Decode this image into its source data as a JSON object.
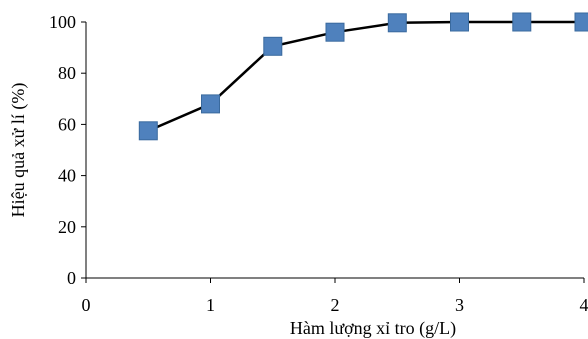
{
  "chart_data": {
    "type": "line",
    "title": "",
    "xlabel": "Hàm lượng xỉ tro (g/L)",
    "ylabel": "Hiệu quả xử lí (%)",
    "xlim": [
      0,
      4
    ],
    "ylim": [
      0,
      100
    ],
    "x_ticks": [
      "0",
      "1",
      "2",
      "3",
      "4"
    ],
    "y_ticks": [
      "0",
      "20",
      "40",
      "60",
      "80",
      "100"
    ],
    "grid": false,
    "legend": "none",
    "series": [
      {
        "x": [
          0.5,
          1.0,
          1.5,
          2.0,
          2.5,
          3.0,
          3.5,
          4.0
        ],
        "values": [
          57.5,
          68,
          90.5,
          96,
          99.7,
          100,
          100,
          100
        ],
        "color": "#4F81BD",
        "line_color": "#000000",
        "marker": "square"
      }
    ]
  }
}
